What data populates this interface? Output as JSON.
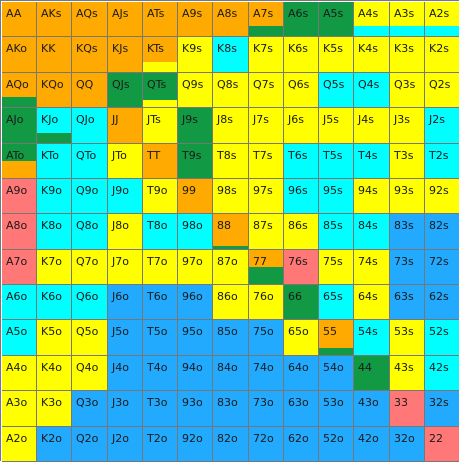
{
  "palette": {
    "Y": "#ffff00",
    "O": "#ffaa00",
    "C": "#00ffff",
    "B": "#22aaff",
    "G": "#119944",
    "R": "#ff7777"
  },
  "grid": {
    "rows": [
      [
        "AA",
        "AKs",
        "AQs",
        "AJs",
        "ATs",
        "A9s",
        "A8s",
        "A7s",
        "A6s",
        "A5s",
        "A4s",
        "A3s",
        "A2s"
      ],
      [
        "AKo",
        "KK",
        "KQs",
        "KJs",
        "KTs",
        "K9s",
        "K8s",
        "K7s",
        "K6s",
        "K5s",
        "K4s",
        "K3s",
        "K2s"
      ],
      [
        "AQo",
        "KQo",
        "QQ",
        "QJs",
        "QTs",
        "Q9s",
        "Q8s",
        "Q7s",
        "Q6s",
        "Q5s",
        "Q4s",
        "Q3s",
        "Q2s"
      ],
      [
        "AJo",
        "KJo",
        "QJo",
        "JJ",
        "JTs",
        "J9s",
        "J8s",
        "J7s",
        "J6s",
        "J5s",
        "J4s",
        "J3s",
        "J2s"
      ],
      [
        "ATo",
        "KTo",
        "QTo",
        "JTo",
        "TT",
        "T9s",
        "T8s",
        "T7s",
        "T6s",
        "T5s",
        "T4s",
        "T3s",
        "T2s"
      ],
      [
        "A9o",
        "K9o",
        "Q9o",
        "J9o",
        "T9o",
        "99",
        "98s",
        "97s",
        "96s",
        "95s",
        "94s",
        "93s",
        "92s"
      ],
      [
        "A8o",
        "K8o",
        "Q8o",
        "J8o",
        "T8o",
        "98o",
        "88",
        "87s",
        "86s",
        "85s",
        "84s",
        "83s",
        "82s"
      ],
      [
        "A7o",
        "K7o",
        "Q7o",
        "J7o",
        "T7o",
        "97o",
        "87o",
        "77",
        "76s",
        "75s",
        "74s",
        "73s",
        "72s"
      ],
      [
        "A6o",
        "K6o",
        "Q6o",
        "J6o",
        "T6o",
        "96o",
        "86o",
        "76o",
        "66",
        "65s",
        "64s",
        "63s",
        "62s"
      ],
      [
        "A5o",
        "K5o",
        "Q5o",
        "J5o",
        "T5o",
        "95o",
        "85o",
        "75o",
        "65o",
        "55",
        "54s",
        "53s",
        "52s"
      ],
      [
        "A4o",
        "K4o",
        "Q4o",
        "J4o",
        "T4o",
        "94o",
        "84o",
        "74o",
        "64o",
        "54o",
        "44",
        "43s",
        "42s"
      ],
      [
        "A3o",
        "K3o",
        "Q3o",
        "J3o",
        "T3o",
        "93o",
        "83o",
        "73o",
        "63o",
        "53o",
        "43o",
        "33",
        "32s"
      ],
      [
        "A2o",
        "K2o",
        "Q2o",
        "J2o",
        "T2o",
        "92o",
        "82o",
        "72o",
        "62o",
        "52o",
        "42o",
        "32o",
        "22"
      ]
    ],
    "fills": [
      [
        [
          "O",
          100
        ],
        [
          "O",
          100
        ],
        [
          "O",
          100
        ],
        [
          "O",
          100
        ],
        [
          "O",
          100
        ],
        [
          "O",
          100
        ],
        [
          "O",
          100
        ],
        [
          "O",
          70,
          "G",
          30
        ],
        [
          "G",
          100
        ],
        [
          "G",
          100
        ],
        [
          "Y",
          70,
          "C",
          30
        ],
        [
          "Y",
          70,
          "C",
          30
        ],
        [
          "Y",
          70,
          "C",
          30
        ]
      ],
      [
        [
          "O",
          100
        ],
        [
          "O",
          100
        ],
        [
          "O",
          100
        ],
        [
          "O",
          100
        ],
        [
          "O",
          70,
          "Y",
          30
        ],
        [
          "Y",
          100
        ],
        [
          "C",
          100
        ],
        [
          "Y",
          100
        ],
        [
          "Y",
          100
        ],
        [
          "Y",
          100
        ],
        [
          "Y",
          100
        ],
        [
          "Y",
          100
        ],
        [
          "Y",
          100
        ]
      ],
      [
        [
          "O",
          70,
          "G",
          30
        ],
        [
          "O",
          100
        ],
        [
          "O",
          100
        ],
        [
          "G",
          100
        ],
        [
          "G",
          80,
          "Y",
          20
        ],
        [
          "Y",
          100
        ],
        [
          "Y",
          100
        ],
        [
          "Y",
          100
        ],
        [
          "Y",
          100
        ],
        [
          "C",
          100
        ],
        [
          "C",
          100
        ],
        [
          "Y",
          100
        ],
        [
          "Y",
          100
        ]
      ],
      [
        [
          "G",
          100
        ],
        [
          "C",
          70,
          "G",
          30
        ],
        [
          "C",
          100
        ],
        [
          "O",
          100
        ],
        [
          "Y",
          100
        ],
        [
          "G",
          100
        ],
        [
          "Y",
          100
        ],
        [
          "Y",
          100
        ],
        [
          "Y",
          100
        ],
        [
          "Y",
          100
        ],
        [
          "Y",
          100
        ],
        [
          "Y",
          100
        ],
        [
          "C",
          100
        ]
      ],
      [
        [
          "G",
          50,
          "O",
          50
        ],
        [
          "C",
          100
        ],
        [
          "C",
          100
        ],
        [
          "Y",
          100
        ],
        [
          "O",
          100
        ],
        [
          "G",
          100
        ],
        [
          "Y",
          100
        ],
        [
          "Y",
          100
        ],
        [
          "C",
          100
        ],
        [
          "C",
          100
        ],
        [
          "C",
          100
        ],
        [
          "Y",
          100
        ],
        [
          "C",
          100
        ]
      ],
      [
        [
          "R",
          100
        ],
        [
          "C",
          100
        ],
        [
          "C",
          100
        ],
        [
          "C",
          100
        ],
        [
          "Y",
          100
        ],
        [
          "O",
          100
        ],
        [
          "Y",
          100
        ],
        [
          "Y",
          100
        ],
        [
          "C",
          100
        ],
        [
          "C",
          100
        ],
        [
          "Y",
          100
        ],
        [
          "Y",
          100
        ],
        [
          "Y",
          100
        ]
      ],
      [
        [
          "R",
          100
        ],
        [
          "C",
          100
        ],
        [
          "C",
          100
        ],
        [
          "Y",
          100
        ],
        [
          "C",
          100
        ],
        [
          "C",
          100
        ],
        [
          "O",
          90,
          "G",
          10
        ],
        [
          "Y",
          100
        ],
        [
          "Y",
          100
        ],
        [
          "C",
          100
        ],
        [
          "C",
          100
        ],
        [
          "B",
          100
        ],
        [
          "B",
          100
        ]
      ],
      [
        [
          "R",
          100
        ],
        [
          "Y",
          100
        ],
        [
          "Y",
          100
        ],
        [
          "Y",
          100
        ],
        [
          "Y",
          100
        ],
        [
          "Y",
          100
        ],
        [
          "Y",
          100
        ],
        [
          "O",
          50,
          "G",
          50
        ],
        [
          "R",
          100
        ],
        [
          "Y",
          100
        ],
        [
          "Y",
          100
        ],
        [
          "B",
          100
        ],
        [
          "B",
          100
        ]
      ],
      [
        [
          "C",
          100
        ],
        [
          "C",
          100
        ],
        [
          "C",
          100
        ],
        [
          "B",
          100
        ],
        [
          "B",
          100
        ],
        [
          "B",
          100
        ],
        [
          "Y",
          100
        ],
        [
          "Y",
          100
        ],
        [
          "G",
          100
        ],
        [
          "C",
          100
        ],
        [
          "Y",
          100
        ],
        [
          "B",
          100
        ],
        [
          "B",
          100
        ]
      ],
      [
        [
          "C",
          100
        ],
        [
          "Y",
          100
        ],
        [
          "Y",
          100
        ],
        [
          "B",
          100
        ],
        [
          "B",
          100
        ],
        [
          "B",
          100
        ],
        [
          "B",
          100
        ],
        [
          "B",
          100
        ],
        [
          "Y",
          100
        ],
        [
          "O",
          80,
          "G",
          20
        ],
        [
          "C",
          100
        ],
        [
          "Y",
          100
        ],
        [
          "C",
          100
        ]
      ],
      [
        [
          "Y",
          100
        ],
        [
          "Y",
          100
        ],
        [
          "Y",
          100
        ],
        [
          "B",
          100
        ],
        [
          "B",
          100
        ],
        [
          "B",
          100
        ],
        [
          "B",
          100
        ],
        [
          "B",
          100
        ],
        [
          "B",
          100
        ],
        [
          "B",
          100
        ],
        [
          "G",
          100
        ],
        [
          "Y",
          100
        ],
        [
          "C",
          100
        ]
      ],
      [
        [
          "Y",
          100
        ],
        [
          "Y",
          100
        ],
        [
          "B",
          100
        ],
        [
          "B",
          100
        ],
        [
          "B",
          100
        ],
        [
          "B",
          100
        ],
        [
          "B",
          100
        ],
        [
          "B",
          100
        ],
        [
          "B",
          100
        ],
        [
          "B",
          100
        ],
        [
          "B",
          100
        ],
        [
          "R",
          100
        ],
        [
          "B",
          100
        ]
      ],
      [
        [
          "Y",
          100
        ],
        [
          "B",
          100
        ],
        [
          "B",
          100
        ],
        [
          "B",
          100
        ],
        [
          "B",
          100
        ],
        [
          "B",
          100
        ],
        [
          "B",
          100
        ],
        [
          "B",
          100
        ],
        [
          "B",
          100
        ],
        [
          "B",
          100
        ],
        [
          "B",
          100
        ],
        [
          "B",
          100
        ],
        [
          "R",
          100
        ]
      ]
    ]
  }
}
